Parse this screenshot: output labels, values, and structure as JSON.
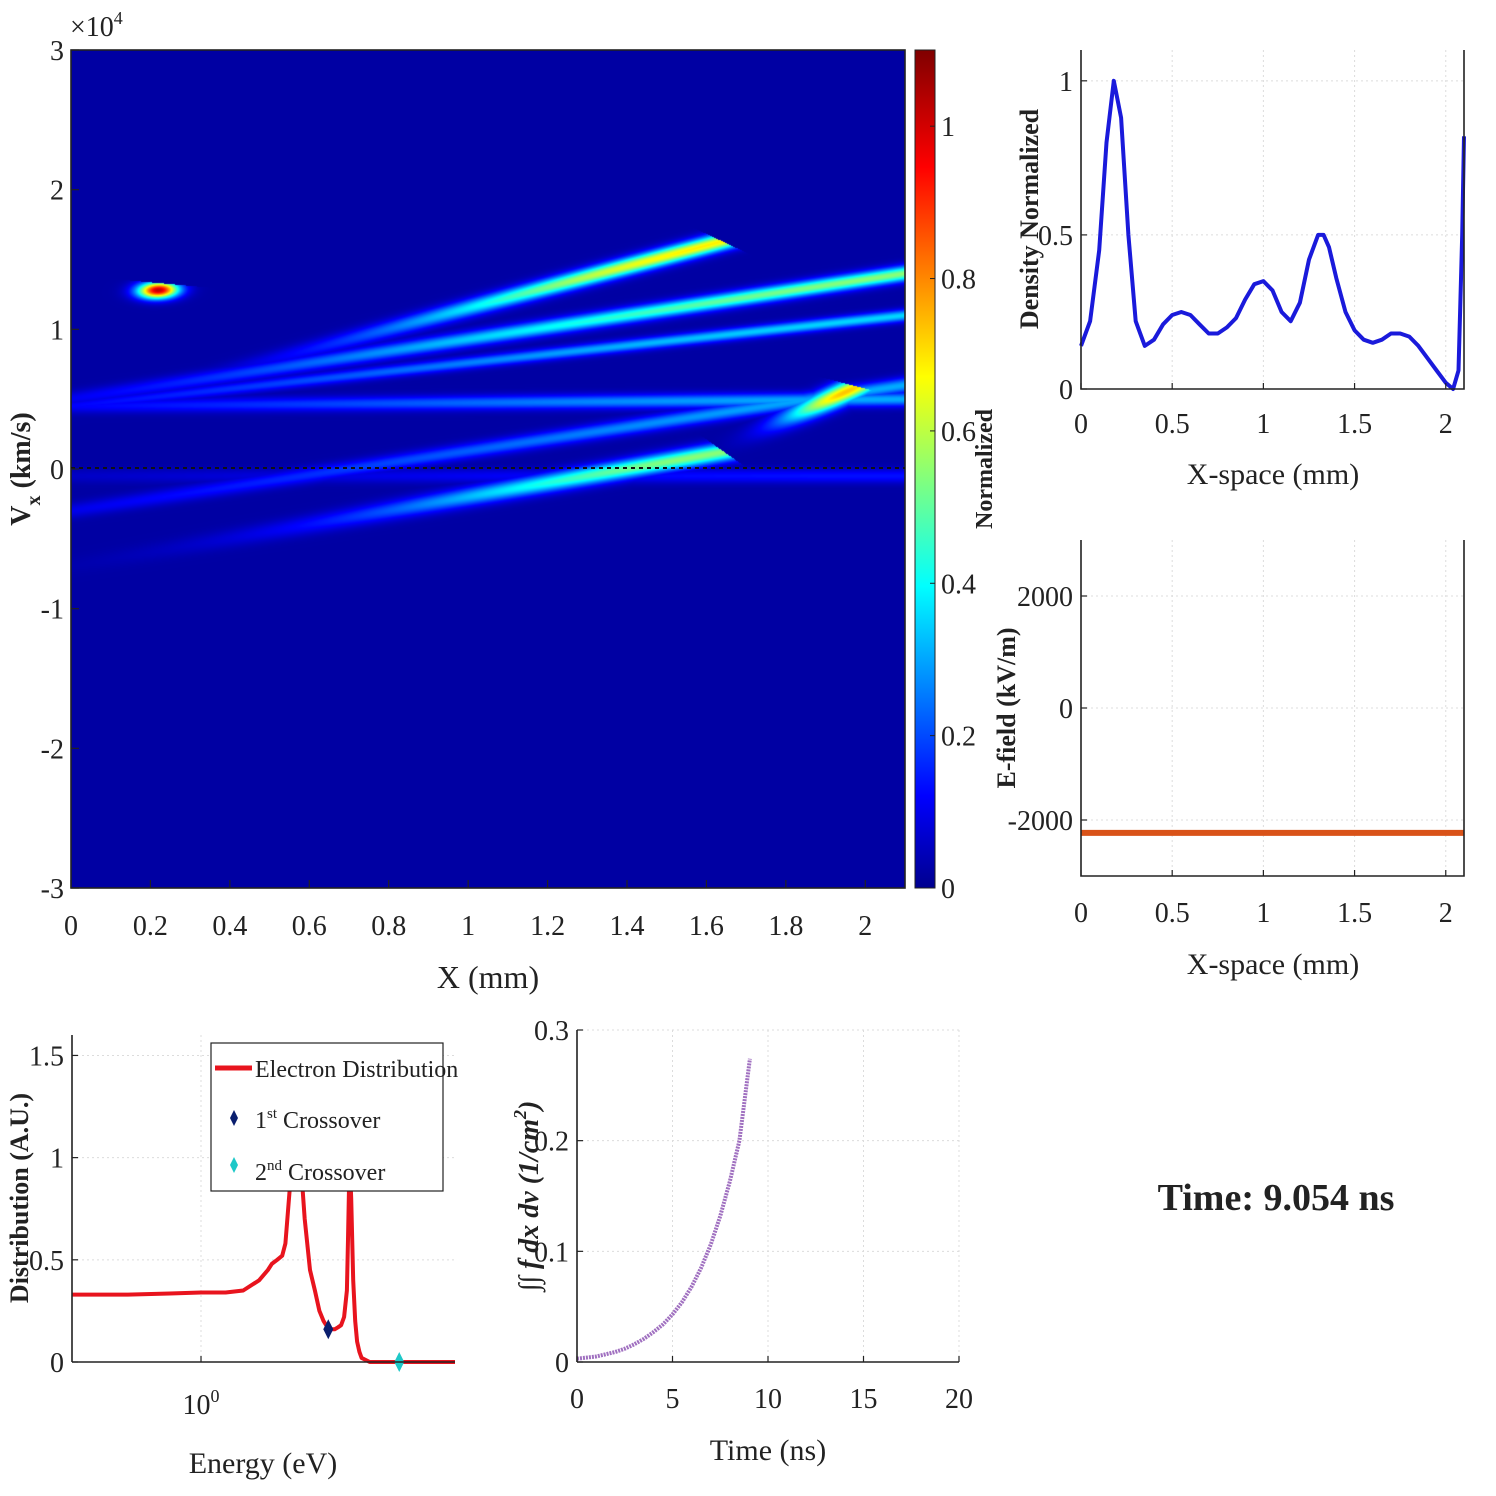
{
  "time_label": "Time: 9.054 ns",
  "chart_data": [
    {
      "id": "phase-space",
      "type": "heatmap",
      "xlabel": "X (mm)",
      "ylabel": "V",
      "ylabel_sub": "x",
      "ylabel_unit": "(km/s)",
      "y_multiplier": "×10",
      "y_multiplier_exp": "4",
      "xlim": [
        0,
        2.1
      ],
      "ylim": [
        -3,
        3
      ],
      "xticks": [
        "0",
        "0.2",
        "0.4",
        "0.6",
        "0.8",
        "1",
        "1.2",
        "1.4",
        "1.6",
        "1.8",
        "2"
      ],
      "xtick_values": [
        0,
        0.2,
        0.4,
        0.6,
        0.8,
        1,
        1.2,
        1.4,
        1.6,
        1.8,
        2
      ],
      "yticks": [
        "-3",
        "-2",
        "-1",
        "0",
        "1",
        "2",
        "3"
      ],
      "ytick_values": [
        -3,
        -2,
        -1,
        0,
        1,
        2,
        3
      ],
      "colorbar": {
        "label": "Normalized",
        "range": [
          0,
          1.1
        ],
        "ticks": [
          "0",
          "0.2",
          "0.4",
          "0.6",
          "0.8",
          "1"
        ],
        "tick_values": [
          0,
          0.2,
          0.4,
          0.6,
          0.8,
          1
        ]
      },
      "background_color": "#00007f",
      "beams": [
        {
          "x0": 0.01,
          "y0": 0.45,
          "x1": 0.22,
          "y1": 1.28,
          "peak": 1.05,
          "wid": 0.05,
          "len": 0.06
        },
        {
          "x0": 0.0,
          "y0": 0.4,
          "x1": 1.6,
          "y1": 1.6,
          "peak": 0.7,
          "wid": 0.05,
          "len": 0.95
        },
        {
          "x0": 0.0,
          "y0": 0.5,
          "x1": 2.1,
          "y1": 1.4,
          "peak": 0.55,
          "wid": 0.05,
          "len": 1.7
        },
        {
          "x0": 0.0,
          "y0": 0.45,
          "x1": 2.1,
          "y1": 1.1,
          "peak": 0.35,
          "wid": 0.04,
          "len": 2.0
        },
        {
          "x0": 0.0,
          "y0": 0.45,
          "x1": 2.1,
          "y1": 0.5,
          "peak": 0.3,
          "wid": 0.05,
          "len": 2.0
        },
        {
          "x0": 0.0,
          "y0": -0.3,
          "x1": 2.1,
          "y1": 0.6,
          "peak": 0.3,
          "wid": 0.05,
          "len": 2.0
        },
        {
          "x0": 0.0,
          "y0": -0.7,
          "x1": 1.6,
          "y1": 0.1,
          "peak": 0.55,
          "wid": 0.06,
          "len": 0.9
        },
        {
          "x0": 1.0,
          "y0": -0.75,
          "x1": 1.95,
          "y1": 0.55,
          "peak": 0.75,
          "wid": 0.05,
          "len": 0.25
        },
        {
          "x0": 0.0,
          "y0": -0.05,
          "x1": 2.1,
          "y1": -0.05,
          "peak": 0.12,
          "wid": 0.05,
          "len": 2.0
        }
      ]
    },
    {
      "id": "density",
      "type": "line",
      "xlabel": "X-space (mm)",
      "ylabel": "Density Normalized",
      "xlim": [
        0,
        2.1
      ],
      "ylim": [
        0,
        1.1
      ],
      "xticks": [
        "0",
        "0.5",
        "1",
        "1.5",
        "2"
      ],
      "xtick_values": [
        0,
        0.5,
        1,
        1.5,
        2
      ],
      "yticks": [
        "0",
        "0.5",
        "1"
      ],
      "ytick_values": [
        0,
        0.5,
        1
      ],
      "grid": true,
      "color": "#1a1adb",
      "x": [
        0,
        0.05,
        0.1,
        0.14,
        0.18,
        0.22,
        0.26,
        0.3,
        0.35,
        0.4,
        0.45,
        0.5,
        0.55,
        0.6,
        0.65,
        0.7,
        0.75,
        0.8,
        0.85,
        0.9,
        0.95,
        1.0,
        1.05,
        1.1,
        1.15,
        1.2,
        1.25,
        1.3,
        1.33,
        1.36,
        1.4,
        1.45,
        1.5,
        1.55,
        1.6,
        1.65,
        1.7,
        1.75,
        1.8,
        1.85,
        1.9,
        1.95,
        2.0,
        2.04,
        2.07,
        2.09,
        2.1
      ],
      "y": [
        0.14,
        0.22,
        0.45,
        0.8,
        1.0,
        0.88,
        0.5,
        0.22,
        0.14,
        0.16,
        0.21,
        0.24,
        0.25,
        0.24,
        0.21,
        0.18,
        0.18,
        0.2,
        0.23,
        0.29,
        0.34,
        0.35,
        0.32,
        0.25,
        0.22,
        0.28,
        0.42,
        0.5,
        0.5,
        0.46,
        0.36,
        0.25,
        0.19,
        0.16,
        0.15,
        0.16,
        0.18,
        0.18,
        0.17,
        0.14,
        0.1,
        0.06,
        0.02,
        0.0,
        0.06,
        0.5,
        0.82
      ]
    },
    {
      "id": "efield",
      "type": "line",
      "xlabel": "X-space (mm)",
      "ylabel": "E-field (kV/m)",
      "xlim": [
        0,
        2.1
      ],
      "ylim": [
        -3000,
        3000
      ],
      "xticks": [
        "0",
        "0.5",
        "1",
        "1.5",
        "2"
      ],
      "xtick_values": [
        0,
        0.5,
        1,
        1.5,
        2
      ],
      "yticks": [
        "-2000",
        "0",
        "2000"
      ],
      "ytick_values": [
        -2000,
        0,
        2000
      ],
      "grid": true,
      "color": "#d95319",
      "x": [
        0,
        2.1
      ],
      "y": [
        -2230,
        -2230
      ]
    },
    {
      "id": "energy-distribution",
      "type": "line",
      "xscale": "log",
      "xlabel": "Energy (eV)",
      "ylabel": "Distribution (A.U.)",
      "xlim": [
        0.12,
        65
      ],
      "ylim": [
        0,
        1.6
      ],
      "xticks": [
        "10"
      ],
      "xticks_exp": [
        "0"
      ],
      "xtick_values": [
        1
      ],
      "yticks": [
        "0",
        "0.5",
        "1",
        "1.5"
      ],
      "ytick_values": [
        0,
        0.5,
        1,
        1.5
      ],
      "grid": true,
      "legend": {
        "placement": "top-right",
        "entries": [
          {
            "label": "Electron Distribution",
            "color": "#e8141e",
            "kind": "line"
          },
          {
            "label_pre": "1",
            "label_sup": "st",
            "label_post": " Crossover",
            "color": "#0a1e6e",
            "kind": "diamond"
          },
          {
            "label_pre": "2",
            "label_sup": "nd",
            "label_post": " Crossover",
            "color": "#1ec8c8",
            "kind": "diamond"
          }
        ]
      },
      "series": [
        {
          "color": "#e8141e",
          "x": [
            0.12,
            0.3,
            0.6,
            1.0,
            1.5,
            2.0,
            2.6,
            3.0,
            3.2,
            3.5,
            3.8,
            4.0,
            4.3,
            4.6,
            5.0,
            5.5,
            6.0,
            6.5,
            7.0,
            7.5,
            8.0,
            8.5,
            9.0,
            9.5,
            10.0,
            10.5,
            11.0,
            11.2,
            11.5,
            11.8,
            12.2,
            12.6,
            13.0,
            13.5,
            14.0,
            15.0,
            16.0,
            18.0,
            22.0,
            28.0,
            35.0,
            45.0,
            55.0,
            65.0
          ],
          "y": [
            0.33,
            0.33,
            0.335,
            0.34,
            0.34,
            0.35,
            0.4,
            0.45,
            0.48,
            0.5,
            0.52,
            0.58,
            0.85,
            1.3,
            1.1,
            0.7,
            0.45,
            0.35,
            0.25,
            0.2,
            0.17,
            0.16,
            0.16,
            0.17,
            0.18,
            0.22,
            0.35,
            0.6,
            1.0,
            0.8,
            0.4,
            0.2,
            0.1,
            0.05,
            0.02,
            0.01,
            0.0,
            0.0,
            0.0,
            0.0,
            0.0,
            0.0,
            0.0,
            0.0
          ]
        }
      ],
      "markers": [
        {
          "x": 8.1,
          "y": 0.16,
          "color": "#0a1e6e"
        },
        {
          "x": 26.0,
          "y": 0.0,
          "color": "#1ec8c8"
        }
      ]
    },
    {
      "id": "integral",
      "type": "line",
      "xlabel": "Time (ns)",
      "ylabel_math": "∫∫ f dx dv  (1/cm",
      "ylabel_exp": "2",
      "ylabel_close": ")",
      "xlim": [
        0,
        20
      ],
      "ylim": [
        0,
        0.3
      ],
      "xticks": [
        "0",
        "5",
        "10",
        "15",
        "20"
      ],
      "xtick_values": [
        0,
        5,
        10,
        15,
        20
      ],
      "yticks": [
        "0",
        "0.1",
        "0.2",
        "0.3"
      ],
      "ytick_values": [
        0,
        0.1,
        0.2,
        0.3
      ],
      "grid": true,
      "color": "#a070c0",
      "x": [
        0,
        0.5,
        1,
        1.5,
        2,
        2.5,
        3,
        3.5,
        4,
        4.5,
        5,
        5.5,
        6,
        6.5,
        7,
        7.5,
        8,
        8.5,
        9.054
      ],
      "y": [
        0.003,
        0.004,
        0.005,
        0.007,
        0.009,
        0.012,
        0.016,
        0.021,
        0.027,
        0.034,
        0.043,
        0.054,
        0.068,
        0.085,
        0.106,
        0.132,
        0.163,
        0.2,
        0.274
      ]
    }
  ]
}
